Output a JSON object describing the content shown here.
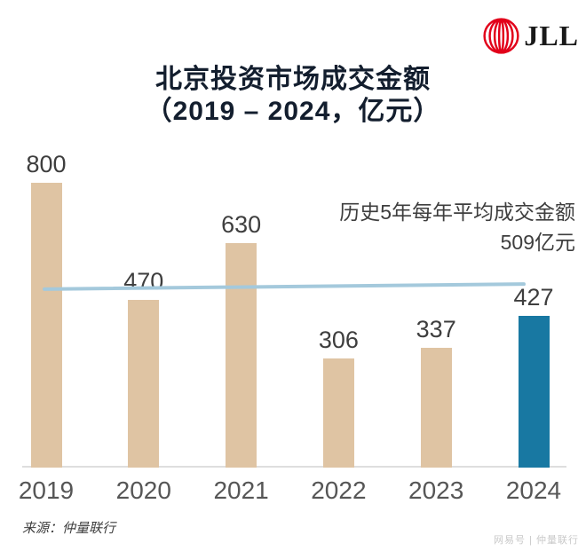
{
  "logo": {
    "text": "JLL",
    "mark_color": "#e2001a"
  },
  "header": {
    "title_line1": "北京投资市场成交金额",
    "title_line2": "（2019 – 2024，亿元）"
  },
  "chart_data": {
    "type": "bar",
    "title": "北京投资市场成交金额（2019 – 2024，亿元）",
    "categories": [
      "2019",
      "2020",
      "2021",
      "2022",
      "2023",
      "2024"
    ],
    "values": [
      800,
      470,
      630,
      306,
      337,
      427
    ],
    "unit": "亿元",
    "ylim": [
      0,
      800
    ],
    "grid": false,
    "legend": false,
    "bar_colors": [
      "#dfc4a3",
      "#dfc4a3",
      "#dfc4a3",
      "#dfc4a3",
      "#dfc4a3",
      "#1878a2"
    ],
    "value_label_color": "#3e3e3e",
    "axis_label_color": "#565656",
    "average_line": {
      "value": 509,
      "color": "#a4c9dc",
      "label_line1": "历史5年每年平均成交金额",
      "label_line2": "509亿元"
    }
  },
  "source": {
    "text": "来源：仲量联行"
  },
  "watermark": {
    "text": "网易号 | 仲量联行"
  }
}
